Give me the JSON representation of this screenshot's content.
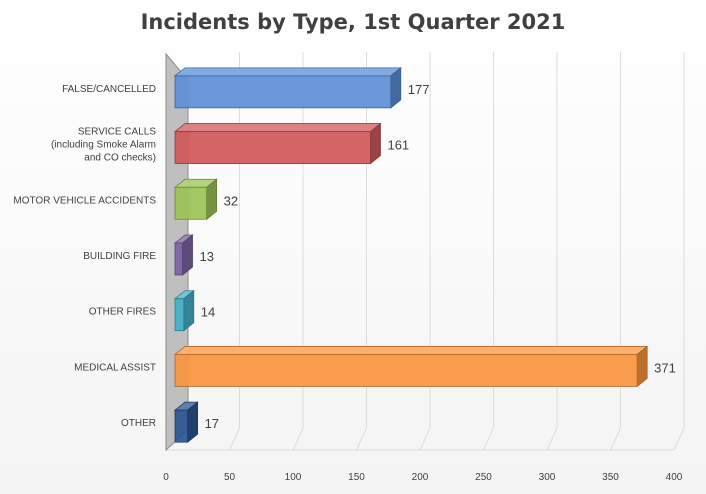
{
  "chart_data": {
    "type": "bar",
    "orientation": "horizontal",
    "style": "3d",
    "title": "Incidents by Type, 1st Quarter 2021",
    "xlabel": "",
    "ylabel": "",
    "xlim": [
      0,
      400
    ],
    "ticks": [
      0,
      50,
      100,
      150,
      200,
      250,
      300,
      350,
      400
    ],
    "grid": true,
    "legend": "none",
    "categories": [
      {
        "label_lines": [
          "FALSE/CANCELLED"
        ],
        "value": 177,
        "color": "#5b8fd6"
      },
      {
        "label_lines": [
          "SERVICE CALLS",
          "(including Smoke Alarm",
          "and CO checks)"
        ],
        "value": 161,
        "color": "#d0585a"
      },
      {
        "label_lines": [
          "MOTOR VEHICLE ACCIDENTS"
        ],
        "value": 32,
        "color": "#9bc255"
      },
      {
        "label_lines": [
          "BUILDING FIRE"
        ],
        "value": 13,
        "color": "#7d62a4"
      },
      {
        "label_lines": [
          "OTHER FIRES"
        ],
        "value": 14,
        "color": "#41b1c9"
      },
      {
        "label_lines": [
          "MEDICAL ASSIST"
        ],
        "value": 371,
        "color": "#f9953d"
      },
      {
        "label_lines": [
          "OTHER"
        ],
        "value": 17,
        "color": "#2a5592"
      }
    ]
  }
}
